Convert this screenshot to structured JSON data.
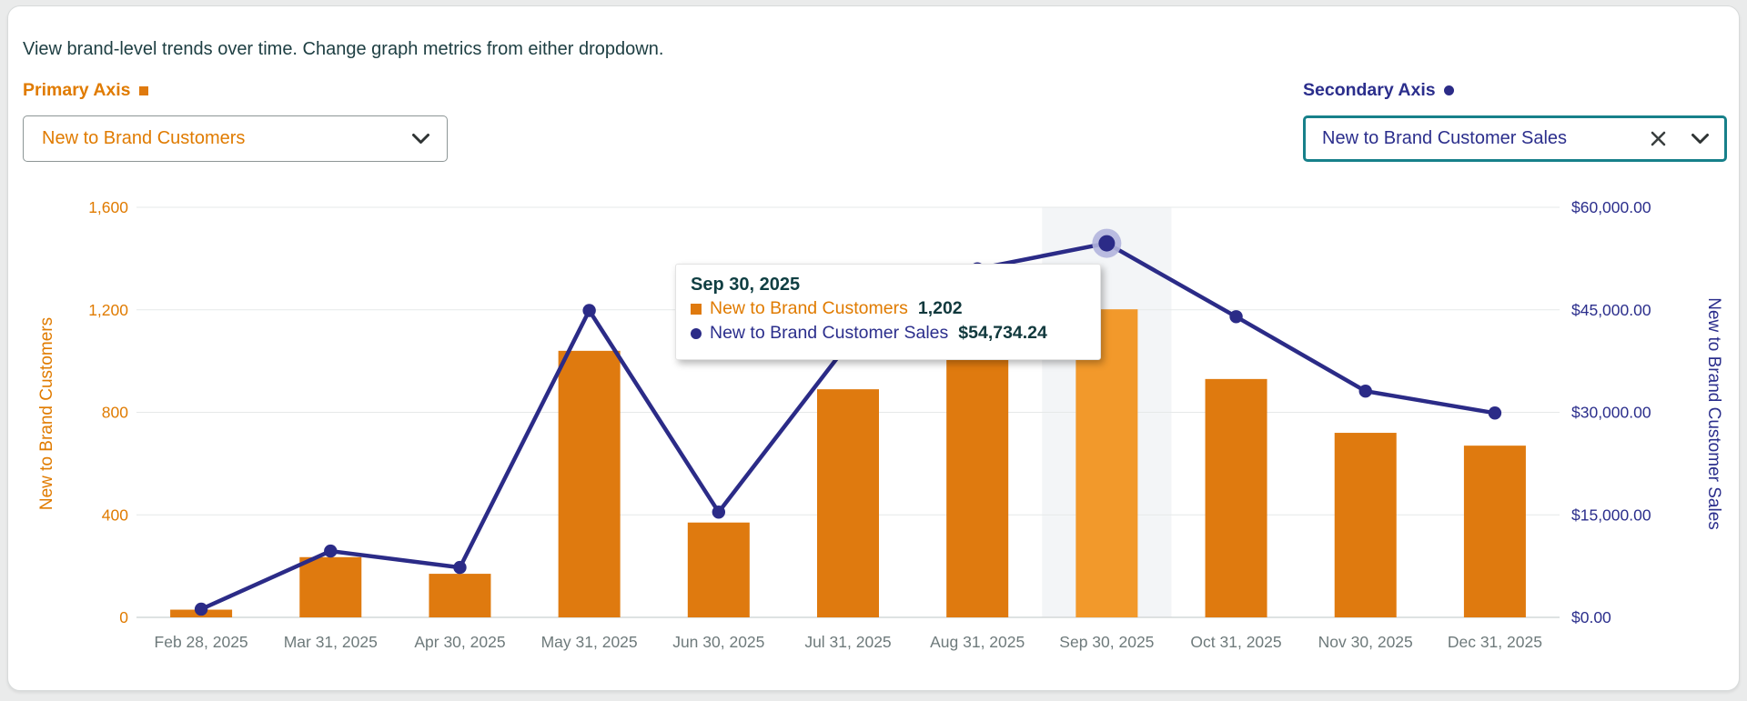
{
  "intro": {
    "text": "View brand-level trends over time. Change graph metrics from either dropdown."
  },
  "primary_axis": {
    "label": "Primary Axis",
    "dropdown_value": "New to Brand Customers"
  },
  "secondary_axis": {
    "label": "Secondary Axis",
    "dropdown_value": "New to Brand Customer Sales"
  },
  "colors": {
    "bar": "#df7a0f",
    "bar_highlight": "#f2992b",
    "line": "#2b2b87",
    "halo": "#b3b5dd",
    "primary_accent": "#e07b00",
    "secondary_accent": "#2b2e8c",
    "intro_text": "#1d3e42",
    "tooltip_value": "#11393d",
    "x_label": "#6e7a7b",
    "gridline": "#e6e9e9",
    "baseline": "#d4d8d8",
    "hover_band": "#f3f5f7",
    "teal_border": "#17808a"
  },
  "chart_data": {
    "type": "combo-bar-line",
    "categories": [
      "Feb 28, 2025",
      "Mar 31, 2025",
      "Apr 30, 2025",
      "May 31, 2025",
      "Jun 30, 2025",
      "Jul 31, 2025",
      "Aug 31, 2025",
      "Sep 30, 2025",
      "Oct 31, 2025",
      "Nov 30, 2025",
      "Dec 31, 2025"
    ],
    "series": [
      {
        "name": "New to Brand Customers",
        "type": "bar",
        "axis": "left",
        "values": [
          30,
          235,
          170,
          1040,
          370,
          890,
          1010,
          1202,
          930,
          720,
          670
        ]
      },
      {
        "name": "New to Brand Customer Sales",
        "type": "line",
        "axis": "right",
        "values": [
          1200,
          9700,
          7300,
          44900,
          15400,
          40000,
          51000,
          54734.24,
          44000,
          33100,
          29900
        ]
      }
    ],
    "left_axis": {
      "label": "New to Brand Customers",
      "min": 0,
      "max": 1600,
      "tick_values": [
        0,
        400,
        800,
        1200,
        1600
      ],
      "tick_labels": [
        "0",
        "400",
        "800",
        "1,200",
        "1,600"
      ]
    },
    "right_axis": {
      "label": "New to Brand Customer Sales",
      "min": 0,
      "max": 60000,
      "tick_values": [
        0,
        15000,
        30000,
        45000,
        60000
      ],
      "tick_labels": [
        "$0.00",
        "$15,000.00",
        "$30,000.00",
        "$45,000.00",
        "$60,000.00"
      ]
    },
    "highlighted_index": 7,
    "grid": true,
    "legend": "none"
  },
  "tooltip": {
    "title": "Sep 30, 2025",
    "rows": [
      {
        "marker": "square",
        "label": "New to Brand Customers",
        "value": "1,202",
        "label_color": "#e07b00",
        "marker_color": "#df7a0f"
      },
      {
        "marker": "circle",
        "label": "New to Brand Customer Sales",
        "value": "$54,734.24",
        "label_color": "#2b2e8c",
        "marker_color": "#2b2b87"
      }
    ]
  }
}
